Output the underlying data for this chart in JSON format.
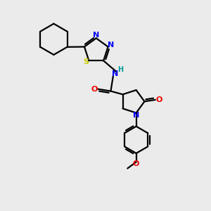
{
  "background_color": "#ebebeb",
  "bond_color": "#000000",
  "figsize": [
    3.0,
    3.0
  ],
  "dpi": 100,
  "atom_colors": {
    "N": "#0000ee",
    "O": "#ee0000",
    "S": "#cccc00",
    "H": "#009999",
    "C": "#000000"
  },
  "lw": 1.6
}
